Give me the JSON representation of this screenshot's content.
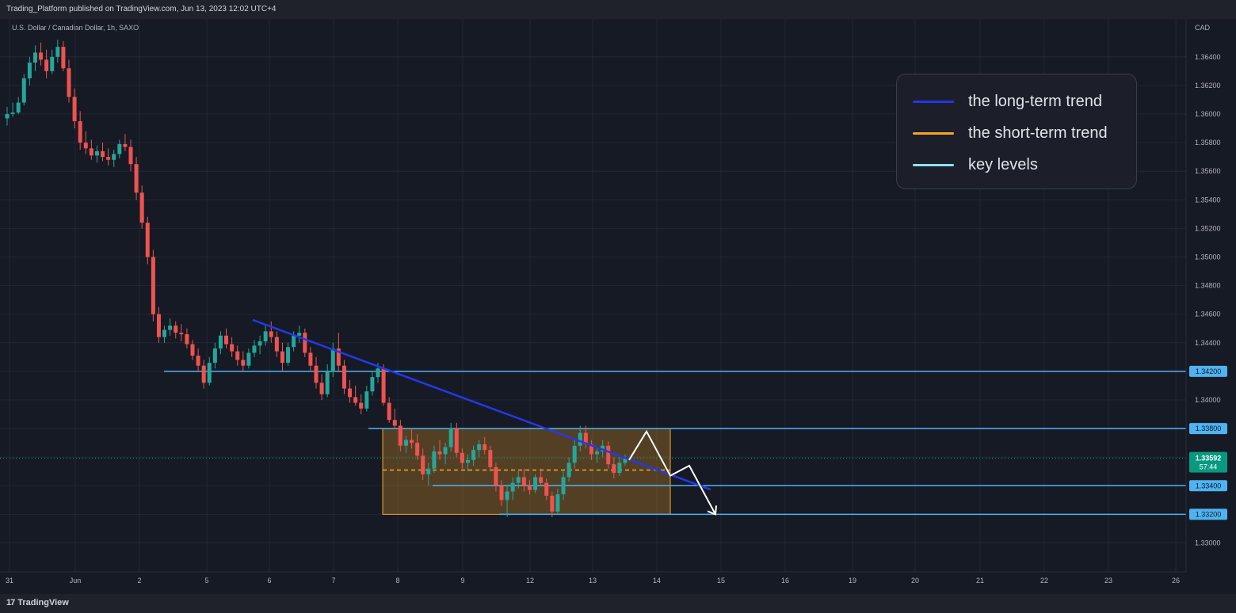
{
  "header": {
    "published": "Trading_Platform published on TradingView.com, Jun 13, 2023 12:02 UTC+4"
  },
  "symbol": {
    "description": "U.S. Dollar / Canadian Dollar, 1h, SAXO"
  },
  "footer": {
    "brand": "TradingView",
    "brand_icon": "tradingview-logo-icon"
  },
  "legend": {
    "items": [
      {
        "label": "the long-term trend",
        "color": "#2438e8"
      },
      {
        "label": "the short-term trend",
        "color": "#f5a623"
      },
      {
        "label": "key levels",
        "color": "#8fe1f5"
      }
    ]
  },
  "chart_data": {
    "type": "candlestick",
    "currency": "CAD",
    "ylim": [
      1.329,
      1.3655
    ],
    "y_ticks": [
      "1.33000",
      "1.33200",
      "1.33400",
      "1.33600",
      "1.33800",
      "1.34000",
      "1.34200",
      "1.34400",
      "1.34600",
      "1.34800",
      "1.35000",
      "1.35200",
      "1.35400",
      "1.35600",
      "1.35800",
      "1.36000",
      "1.36200",
      "1.36400"
    ],
    "x_ticks": [
      "31",
      "Jun",
      "2",
      "5",
      "6",
      "7",
      "8",
      "9",
      "12",
      "13",
      "14",
      "15",
      "16",
      "19",
      "20",
      "21",
      "22",
      "23",
      "26"
    ],
    "key_levels": [
      "1.34200",
      "1.33800",
      "1.33400",
      "1.33200"
    ],
    "current_price": {
      "value": "1.33592",
      "countdown": "57:44"
    },
    "colors": {
      "up": "#26a69a",
      "down": "#ef5350",
      "key_level": "#4fb3f2",
      "long_trend": "#2438e8",
      "range_box": "#f5a623",
      "projection": "#ffffff",
      "current_badge": "#089981"
    },
    "trend_line": {
      "from": {
        "x": "6",
        "y": 1.3456
      },
      "to": {
        "x": "14",
        "y": 1.3355
      }
    },
    "range_box": {
      "from_x": "7",
      "to_x": "14",
      "top": 1.338,
      "bottom": 1.332,
      "mid": 1.3351
    },
    "projection_path_prices": [
      1.3358,
      1.3378,
      1.3347,
      1.3354,
      1.332
    ],
    "candles_ohlc": [
      [
        1.3597,
        1.3605,
        1.3592,
        1.36
      ],
      [
        1.36,
        1.3608,
        1.3598,
        1.3601
      ],
      [
        1.3601,
        1.3612,
        1.36,
        1.3608
      ],
      [
        1.3608,
        1.3628,
        1.3606,
        1.3625
      ],
      [
        1.3625,
        1.364,
        1.362,
        1.3636
      ],
      [
        1.3636,
        1.3648,
        1.363,
        1.3643
      ],
      [
        1.3643,
        1.365,
        1.3634,
        1.3638
      ],
      [
        1.3638,
        1.3645,
        1.3625,
        1.363
      ],
      [
        1.363,
        1.3645,
        1.3628,
        1.364
      ],
      [
        1.364,
        1.3652,
        1.3636,
        1.3647
      ],
      [
        1.3647,
        1.3651,
        1.363,
        1.3632
      ],
      [
        1.3632,
        1.3638,
        1.3608,
        1.3612
      ],
      [
        1.3612,
        1.3618,
        1.359,
        1.3595
      ],
      [
        1.3595,
        1.3602,
        1.3575,
        1.358
      ],
      [
        1.358,
        1.3588,
        1.3572,
        1.3576
      ],
      [
        1.3576,
        1.3582,
        1.3568,
        1.3571
      ],
      [
        1.3571,
        1.3578,
        1.3566,
        1.3574
      ],
      [
        1.3574,
        1.358,
        1.3567,
        1.357
      ],
      [
        1.357,
        1.3576,
        1.3564,
        1.3568
      ],
      [
        1.3568,
        1.3575,
        1.3563,
        1.3572
      ],
      [
        1.3572,
        1.3582,
        1.3569,
        1.3579
      ],
      [
        1.3579,
        1.3586,
        1.3574,
        1.3577
      ],
      [
        1.3577,
        1.3582,
        1.356,
        1.3565
      ],
      [
        1.3565,
        1.357,
        1.354,
        1.3545
      ],
      [
        1.3545,
        1.355,
        1.352,
        1.3524
      ],
      [
        1.3524,
        1.3528,
        1.3495,
        1.35
      ],
      [
        1.35,
        1.3505,
        1.3455,
        1.346
      ],
      [
        1.346,
        1.3465,
        1.344,
        1.3444
      ],
      [
        1.3444,
        1.3452,
        1.344,
        1.3449
      ],
      [
        1.3449,
        1.3457,
        1.3445,
        1.3452
      ],
      [
        1.3452,
        1.3455,
        1.3443,
        1.3447
      ],
      [
        1.3447,
        1.3453,
        1.3441,
        1.3446
      ],
      [
        1.3446,
        1.345,
        1.3436,
        1.3439
      ],
      [
        1.3439,
        1.3442,
        1.3428,
        1.3431
      ],
      [
        1.3431,
        1.3436,
        1.342,
        1.3424
      ],
      [
        1.3424,
        1.3428,
        1.3408,
        1.3412
      ],
      [
        1.3412,
        1.343,
        1.341,
        1.3426
      ],
      [
        1.3426,
        1.344,
        1.3422,
        1.3436
      ],
      [
        1.3436,
        1.3448,
        1.3432,
        1.3445
      ],
      [
        1.3445,
        1.345,
        1.3436,
        1.3439
      ],
      [
        1.3439,
        1.3444,
        1.343,
        1.3434
      ],
      [
        1.3434,
        1.3438,
        1.3424,
        1.3428
      ],
      [
        1.3428,
        1.3434,
        1.342,
        1.3424
      ],
      [
        1.3424,
        1.3436,
        1.3422,
        1.3433
      ],
      [
        1.3433,
        1.3442,
        1.343,
        1.3438
      ],
      [
        1.3438,
        1.3445,
        1.3432,
        1.3441
      ],
      [
        1.3441,
        1.3452,
        1.3438,
        1.3448
      ],
      [
        1.3448,
        1.3455,
        1.344,
        1.3444
      ],
      [
        1.3444,
        1.3448,
        1.343,
        1.3434
      ],
      [
        1.3434,
        1.344,
        1.342,
        1.3426
      ],
      [
        1.3426,
        1.344,
        1.3424,
        1.3437
      ],
      [
        1.3437,
        1.3448,
        1.3434,
        1.3445
      ],
      [
        1.3445,
        1.3452,
        1.344,
        1.3447
      ],
      [
        1.3447,
        1.345,
        1.343,
        1.3433
      ],
      [
        1.3433,
        1.3437,
        1.342,
        1.3424
      ],
      [
        1.3424,
        1.343,
        1.3408,
        1.3412
      ],
      [
        1.3412,
        1.3418,
        1.34,
        1.3404
      ],
      [
        1.3404,
        1.3425,
        1.3402,
        1.342
      ],
      [
        1.342,
        1.344,
        1.3416,
        1.3436
      ],
      [
        1.3436,
        1.3447,
        1.342,
        1.3424
      ],
      [
        1.3424,
        1.3428,
        1.3404,
        1.3408
      ],
      [
        1.3408,
        1.3414,
        1.3398,
        1.3402
      ],
      [
        1.3402,
        1.341,
        1.3396,
        1.3398
      ],
      [
        1.3398,
        1.3404,
        1.339,
        1.3394
      ],
      [
        1.3394,
        1.341,
        1.3392,
        1.3406
      ],
      [
        1.3406,
        1.342,
        1.3403,
        1.3416
      ],
      [
        1.3416,
        1.3426,
        1.3412,
        1.3422
      ],
      [
        1.3422,
        1.3425,
        1.3396,
        1.3398
      ],
      [
        1.3398,
        1.3402,
        1.3384,
        1.3386
      ],
      [
        1.3386,
        1.3394,
        1.338,
        1.3382
      ],
      [
        1.3382,
        1.3386,
        1.3364,
        1.3368
      ],
      [
        1.3368,
        1.3375,
        1.3363,
        1.3372
      ],
      [
        1.3372,
        1.338,
        1.3366,
        1.337
      ],
      [
        1.337,
        1.3376,
        1.3358,
        1.3361
      ],
      [
        1.3361,
        1.3366,
        1.3344,
        1.3348
      ],
      [
        1.3348,
        1.3356,
        1.334,
        1.3352
      ],
      [
        1.3352,
        1.3368,
        1.3349,
        1.3364
      ],
      [
        1.3364,
        1.3372,
        1.3358,
        1.3362
      ],
      [
        1.3362,
        1.337,
        1.3355,
        1.3367
      ],
      [
        1.3367,
        1.3384,
        1.3364,
        1.338
      ],
      [
        1.338,
        1.3384,
        1.336,
        1.3363
      ],
      [
        1.3363,
        1.3366,
        1.3352,
        1.3356
      ],
      [
        1.3356,
        1.3362,
        1.335,
        1.3358
      ],
      [
        1.3358,
        1.3368,
        1.3354,
        1.3365
      ],
      [
        1.3365,
        1.3372,
        1.336,
        1.3369
      ],
      [
        1.3369,
        1.3374,
        1.3362,
        1.3365
      ],
      [
        1.3365,
        1.3368,
        1.335,
        1.3353
      ],
      [
        1.3353,
        1.3356,
        1.3336,
        1.334
      ],
      [
        1.334,
        1.3344,
        1.3326,
        1.333
      ],
      [
        1.333,
        1.334,
        1.3318,
        1.3336
      ],
      [
        1.3336,
        1.3346,
        1.333,
        1.3342
      ],
      [
        1.3342,
        1.335,
        1.3338,
        1.3346
      ],
      [
        1.3346,
        1.3352,
        1.3336,
        1.334
      ],
      [
        1.334,
        1.3344,
        1.3334,
        1.3337
      ],
      [
        1.3337,
        1.3348,
        1.3335,
        1.3346
      ],
      [
        1.3346,
        1.3352,
        1.334,
        1.3342
      ],
      [
        1.3342,
        1.3345,
        1.333,
        1.3333
      ],
      [
        1.3333,
        1.3336,
        1.3318,
        1.3322
      ],
      [
        1.3322,
        1.3338,
        1.332,
        1.3334
      ],
      [
        1.3334,
        1.335,
        1.333,
        1.3346
      ],
      [
        1.3346,
        1.336,
        1.3343,
        1.3356
      ],
      [
        1.3356,
        1.3372,
        1.3352,
        1.3368
      ],
      [
        1.3368,
        1.3382,
        1.3364,
        1.3377
      ],
      [
        1.3377,
        1.3382,
        1.3366,
        1.3369
      ],
      [
        1.3369,
        1.3372,
        1.3358,
        1.3362
      ],
      [
        1.3362,
        1.3366,
        1.3356,
        1.3364
      ],
      [
        1.3364,
        1.3372,
        1.336,
        1.3368
      ],
      [
        1.3368,
        1.3371,
        1.3352,
        1.3355
      ],
      [
        1.3355,
        1.336,
        1.3345,
        1.3349
      ],
      [
        1.3349,
        1.336,
        1.3347,
        1.3356
      ],
      [
        1.3356,
        1.3362,
        1.3354,
        1.3359
      ]
    ]
  }
}
